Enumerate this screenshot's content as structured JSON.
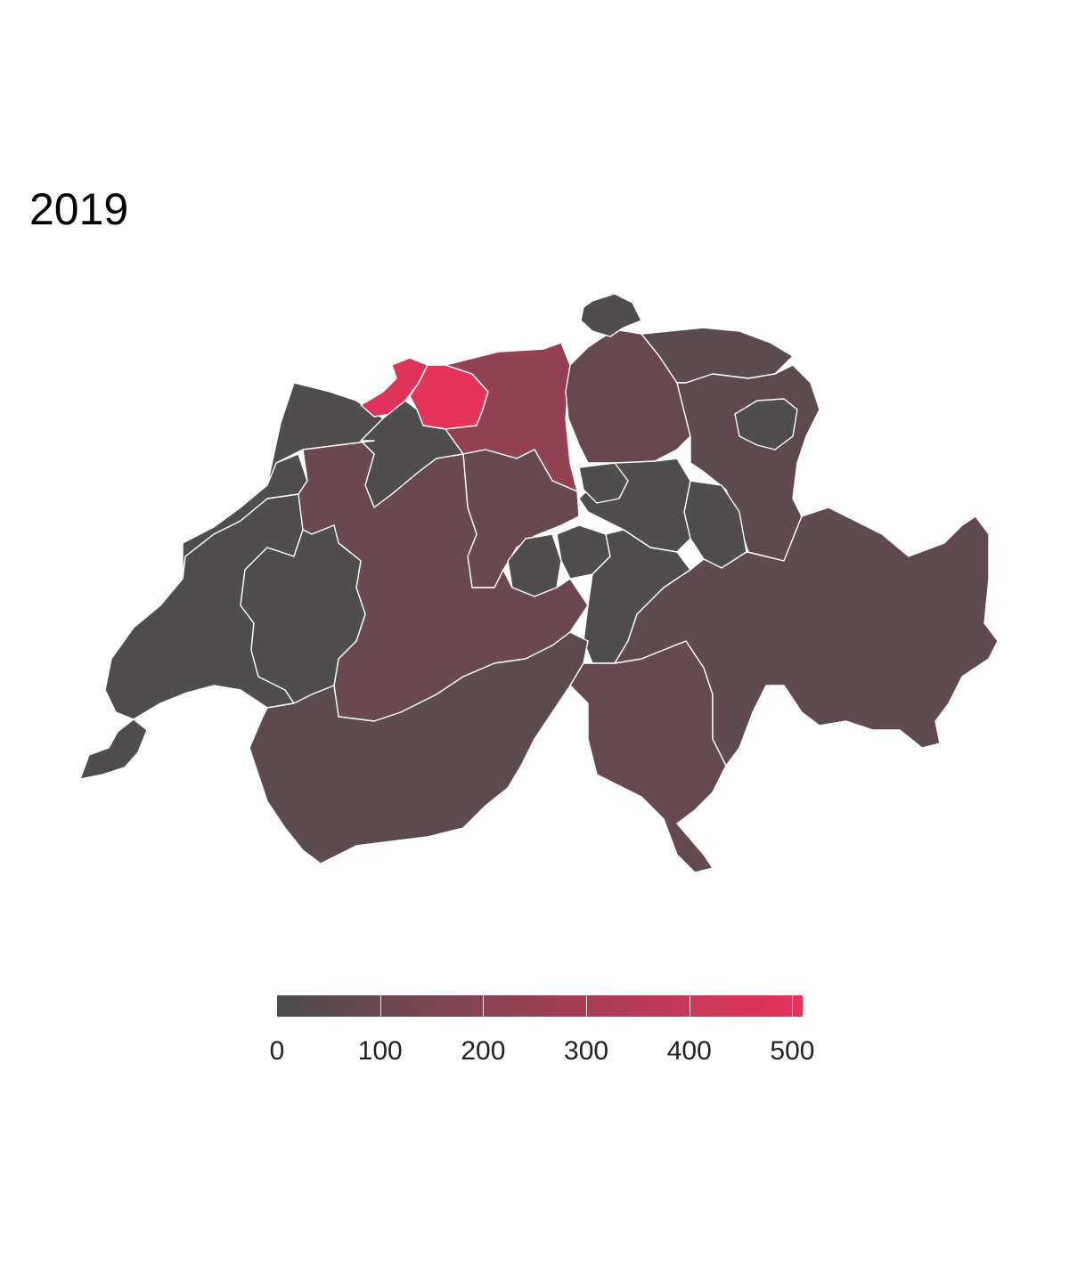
{
  "title": "2019",
  "colors": {
    "low": "#4d4d4d",
    "high": "#e8325a",
    "border": "#ffffff",
    "background": "#ffffff"
  },
  "legend": {
    "min": 0,
    "max": 510,
    "ticks": [
      "0",
      "100",
      "200",
      "300",
      "400",
      "500"
    ]
  },
  "regions": [
    {
      "id": "basel-land",
      "value": 500
    },
    {
      "id": "basel-stadt",
      "value": 480
    },
    {
      "id": "aargau",
      "value": 230
    },
    {
      "id": "zurich",
      "value": 90
    },
    {
      "id": "thurgau",
      "value": 40
    },
    {
      "id": "st-gallen",
      "value": 55
    },
    {
      "id": "appenzell",
      "value": 5
    },
    {
      "id": "schaffhausen",
      "value": 5
    },
    {
      "id": "bern",
      "value": 95
    },
    {
      "id": "luzern",
      "value": 85
    },
    {
      "id": "zug",
      "value": 5
    },
    {
      "id": "schwyz",
      "value": 5
    },
    {
      "id": "glarus",
      "value": 5
    },
    {
      "id": "obwalden",
      "value": 5
    },
    {
      "id": "nidwalden",
      "value": 5
    },
    {
      "id": "uri",
      "value": 5
    },
    {
      "id": "graubunden",
      "value": 60
    },
    {
      "id": "ticino",
      "value": 80
    },
    {
      "id": "valais",
      "value": 45
    },
    {
      "id": "vaud",
      "value": 5
    },
    {
      "id": "fribourg",
      "value": 5
    },
    {
      "id": "neuchatel",
      "value": 5
    },
    {
      "id": "jura",
      "value": 5
    },
    {
      "id": "solothurn",
      "value": 5
    },
    {
      "id": "geneva",
      "value": 5
    }
  ]
}
